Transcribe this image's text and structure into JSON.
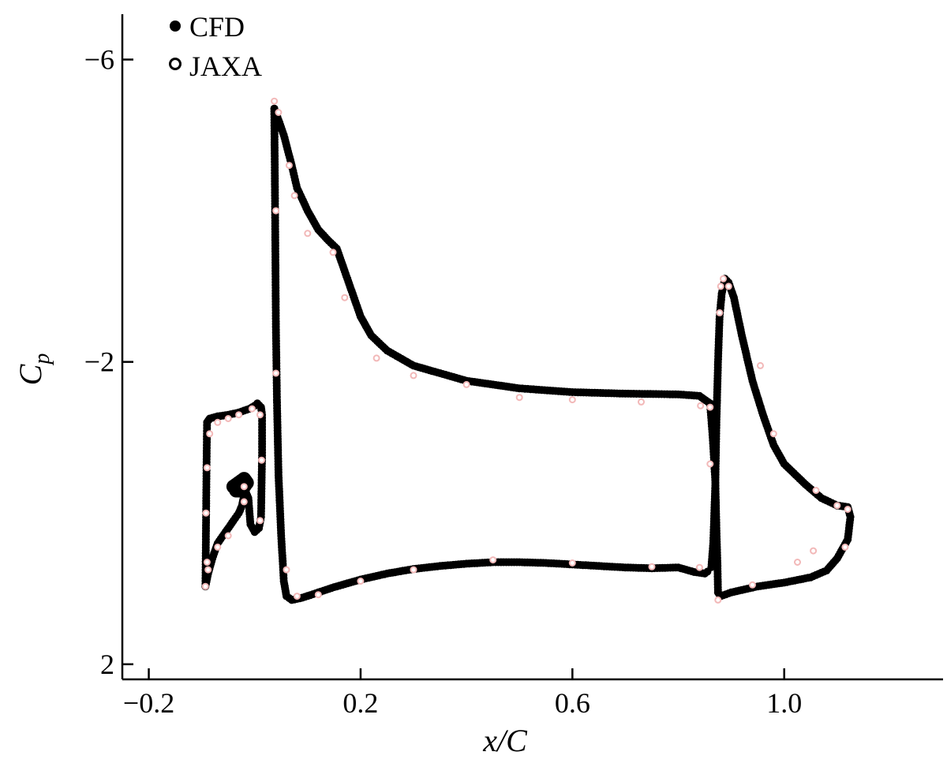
{
  "chart_data": {
    "type": "scatter",
    "title": "",
    "xlabel": "x/C",
    "ylabel_main": "C",
    "ylabel_sub": "p",
    "xlim": [
      -0.25,
      1.3
    ],
    "ylim": [
      2.2,
      -6.6
    ],
    "y_inverted": true,
    "grid": false,
    "legend_position": "top-left",
    "x_ticks": [
      {
        "value": -0.2,
        "label": "−0.2"
      },
      {
        "value": 0.2,
        "label": "0.2"
      },
      {
        "value": 0.6,
        "label": "0.6"
      },
      {
        "value": 1.0,
        "label": "1.0"
      }
    ],
    "y_ticks": [
      {
        "value": -6,
        "label": "−6"
      },
      {
        "value": -2,
        "label": "−2"
      },
      {
        "value": 2,
        "label": "2"
      }
    ],
    "series": [
      {
        "name": "CFD",
        "marker": "filled-circle",
        "color": "#000000",
        "segments": [
          [
            [
              -0.093,
              0.97
            ],
            [
              -0.092,
              0.2
            ],
            [
              -0.091,
              -0.6
            ],
            [
              -0.09,
              -1.2
            ],
            [
              -0.085,
              -1.25
            ],
            [
              -0.07,
              -1.28
            ],
            [
              -0.05,
              -1.3
            ],
            [
              -0.03,
              -1.33
            ],
            [
              -0.01,
              -1.38
            ],
            [
              0.0,
              -1.42
            ],
            [
              0.005,
              -1.45
            ],
            [
              0.012,
              -1.4
            ],
            [
              0.014,
              -1.3
            ],
            [
              0.014,
              -1.1
            ],
            [
              0.014,
              -0.8
            ],
            [
              0.013,
              -0.4
            ],
            [
              0.012,
              0.05
            ],
            [
              0.008,
              0.2
            ],
            [
              0.0,
              0.25
            ],
            [
              -0.008,
              0.15
            ],
            [
              -0.012,
              -0.2
            ],
            [
              -0.018,
              -0.3
            ],
            [
              -0.024,
              -0.1
            ],
            [
              -0.03,
              0.0
            ],
            [
              -0.04,
              0.1
            ],
            [
              -0.055,
              0.25
            ],
            [
              -0.07,
              0.4
            ],
            [
              -0.08,
              0.6
            ],
            [
              -0.088,
              0.8
            ],
            [
              -0.093,
              0.97
            ]
          ],
          [
            [
              -0.04,
              -0.35
            ],
            [
              -0.03,
              -0.4
            ],
            [
              -0.02,
              -0.45
            ],
            [
              -0.015,
              -0.4
            ],
            [
              -0.025,
              -0.3
            ],
            [
              -0.04,
              -0.3
            ]
          ],
          [
            [
              0.037,
              -5.35
            ],
            [
              0.045,
              -5.2
            ],
            [
              0.055,
              -5.0
            ],
            [
              0.07,
              -4.6
            ],
            [
              0.08,
              -4.3
            ],
            [
              0.1,
              -4.0
            ],
            [
              0.12,
              -3.75
            ],
            [
              0.14,
              -3.6
            ],
            [
              0.155,
              -3.5
            ],
            [
              0.17,
              -3.2
            ],
            [
              0.18,
              -3.0
            ],
            [
              0.19,
              -2.8
            ],
            [
              0.2,
              -2.6
            ],
            [
              0.22,
              -2.35
            ],
            [
              0.25,
              -2.15
            ],
            [
              0.3,
              -1.95
            ],
            [
              0.35,
              -1.85
            ],
            [
              0.4,
              -1.75
            ],
            [
              0.45,
              -1.7
            ],
            [
              0.5,
              -1.65
            ],
            [
              0.6,
              -1.6
            ],
            [
              0.7,
              -1.58
            ],
            [
              0.8,
              -1.57
            ],
            [
              0.84,
              -1.55
            ],
            [
              0.86,
              -1.45
            ]
          ],
          [
            [
              0.037,
              -5.35
            ],
            [
              0.038,
              -4.5
            ],
            [
              0.039,
              -3.5
            ],
            [
              0.04,
              -2.5
            ],
            [
              0.042,
              -1.5
            ],
            [
              0.045,
              -0.5
            ],
            [
              0.05,
              0.3
            ],
            [
              0.055,
              0.9
            ],
            [
              0.06,
              1.1
            ],
            [
              0.07,
              1.15
            ],
            [
              0.09,
              1.12
            ],
            [
              0.12,
              1.05
            ],
            [
              0.15,
              0.98
            ],
            [
              0.2,
              0.88
            ],
            [
              0.25,
              0.8
            ],
            [
              0.3,
              0.74
            ],
            [
              0.35,
              0.7
            ],
            [
              0.4,
              0.67
            ],
            [
              0.45,
              0.65
            ],
            [
              0.5,
              0.65
            ],
            [
              0.55,
              0.66
            ],
            [
              0.6,
              0.68
            ],
            [
              0.65,
              0.7
            ],
            [
              0.7,
              0.72
            ],
            [
              0.75,
              0.73
            ],
            [
              0.8,
              0.72
            ],
            [
              0.83,
              0.78
            ],
            [
              0.85,
              0.8
            ],
            [
              0.86,
              0.75
            ]
          ],
          [
            [
              0.86,
              -1.45
            ],
            [
              0.865,
              -1.0
            ],
            [
              0.87,
              -0.4
            ],
            [
              0.872,
              0.2
            ],
            [
              0.874,
              0.7
            ],
            [
              0.875,
              1.05
            ],
            [
              0.88,
              1.1
            ],
            [
              0.9,
              1.05
            ],
            [
              0.95,
              0.97
            ],
            [
              1.0,
              0.92
            ],
            [
              1.05,
              0.85
            ],
            [
              1.08,
              0.76
            ],
            [
              1.1,
              0.6
            ],
            [
              1.12,
              0.35
            ],
            [
              1.125,
              0.05
            ],
            [
              1.12,
              -0.08
            ],
            [
              1.1,
              -0.1
            ],
            [
              1.07,
              -0.2
            ],
            [
              1.04,
              -0.38
            ],
            [
              1.0,
              -0.65
            ],
            [
              0.98,
              -0.9
            ],
            [
              0.96,
              -1.3
            ],
            [
              0.94,
              -1.75
            ],
            [
              0.92,
              -2.35
            ],
            [
              0.905,
              -2.85
            ],
            [
              0.895,
              -3.05
            ],
            [
              0.888,
              -3.1
            ],
            [
              0.882,
              -2.9
            ],
            [
              0.878,
              -2.6
            ],
            [
              0.875,
              -2.0
            ],
            [
              0.872,
              -1.2
            ],
            [
              0.87,
              -0.4
            ],
            [
              0.866,
              0.4
            ],
            [
              0.862,
              0.75
            ]
          ]
        ]
      },
      {
        "name": "JAXA",
        "marker": "open-circle",
        "color": "#f2b8b8",
        "points": [
          [
            -0.093,
            0.97
          ],
          [
            -0.09,
            0.65
          ],
          [
            -0.092,
            0.0
          ],
          [
            -0.09,
            -0.6
          ],
          [
            -0.085,
            -1.05
          ],
          [
            -0.07,
            -1.2
          ],
          [
            -0.05,
            -1.25
          ],
          [
            -0.03,
            -1.3
          ],
          [
            -0.005,
            -1.38
          ],
          [
            0.01,
            -1.3
          ],
          [
            0.013,
            -0.7
          ],
          [
            0.01,
            0.1
          ],
          [
            -0.02,
            -0.15
          ],
          [
            -0.02,
            -0.35
          ],
          [
            -0.05,
            0.3
          ],
          [
            -0.07,
            0.45
          ],
          [
            -0.088,
            0.75
          ],
          [
            0.037,
            -5.45
          ],
          [
            0.045,
            -5.3
          ],
          [
            0.065,
            -4.6
          ],
          [
            0.04,
            -4.0
          ],
          [
            0.075,
            -4.2
          ],
          [
            0.1,
            -3.7
          ],
          [
            0.148,
            -3.45
          ],
          [
            0.17,
            -2.85
          ],
          [
            0.04,
            -1.85
          ],
          [
            0.23,
            -2.05
          ],
          [
            0.3,
            -1.82
          ],
          [
            0.4,
            -1.7
          ],
          [
            0.5,
            -1.53
          ],
          [
            0.6,
            -1.5
          ],
          [
            0.73,
            -1.47
          ],
          [
            0.842,
            -1.42
          ],
          [
            0.86,
            -1.4
          ],
          [
            0.86,
            -0.65
          ],
          [
            0.88,
            -3.0
          ],
          [
            0.885,
            -3.1
          ],
          [
            0.895,
            -3.0
          ],
          [
            0.878,
            -2.65
          ],
          [
            0.955,
            -1.95
          ],
          [
            0.98,
            -1.05
          ],
          [
            1.06,
            -0.3
          ],
          [
            1.1,
            -0.1
          ],
          [
            1.12,
            -0.05
          ],
          [
            1.115,
            0.45
          ],
          [
            1.055,
            0.5
          ],
          [
            1.025,
            0.65
          ],
          [
            0.94,
            0.95
          ],
          [
            0.875,
            1.15
          ],
          [
            0.06,
            0.75
          ],
          [
            0.08,
            1.1
          ],
          [
            0.12,
            1.08
          ],
          [
            0.2,
            0.9
          ],
          [
            0.3,
            0.75
          ],
          [
            0.45,
            0.62
          ],
          [
            0.6,
            0.66
          ],
          [
            0.75,
            0.71
          ],
          [
            0.84,
            0.72
          ]
        ]
      }
    ]
  }
}
